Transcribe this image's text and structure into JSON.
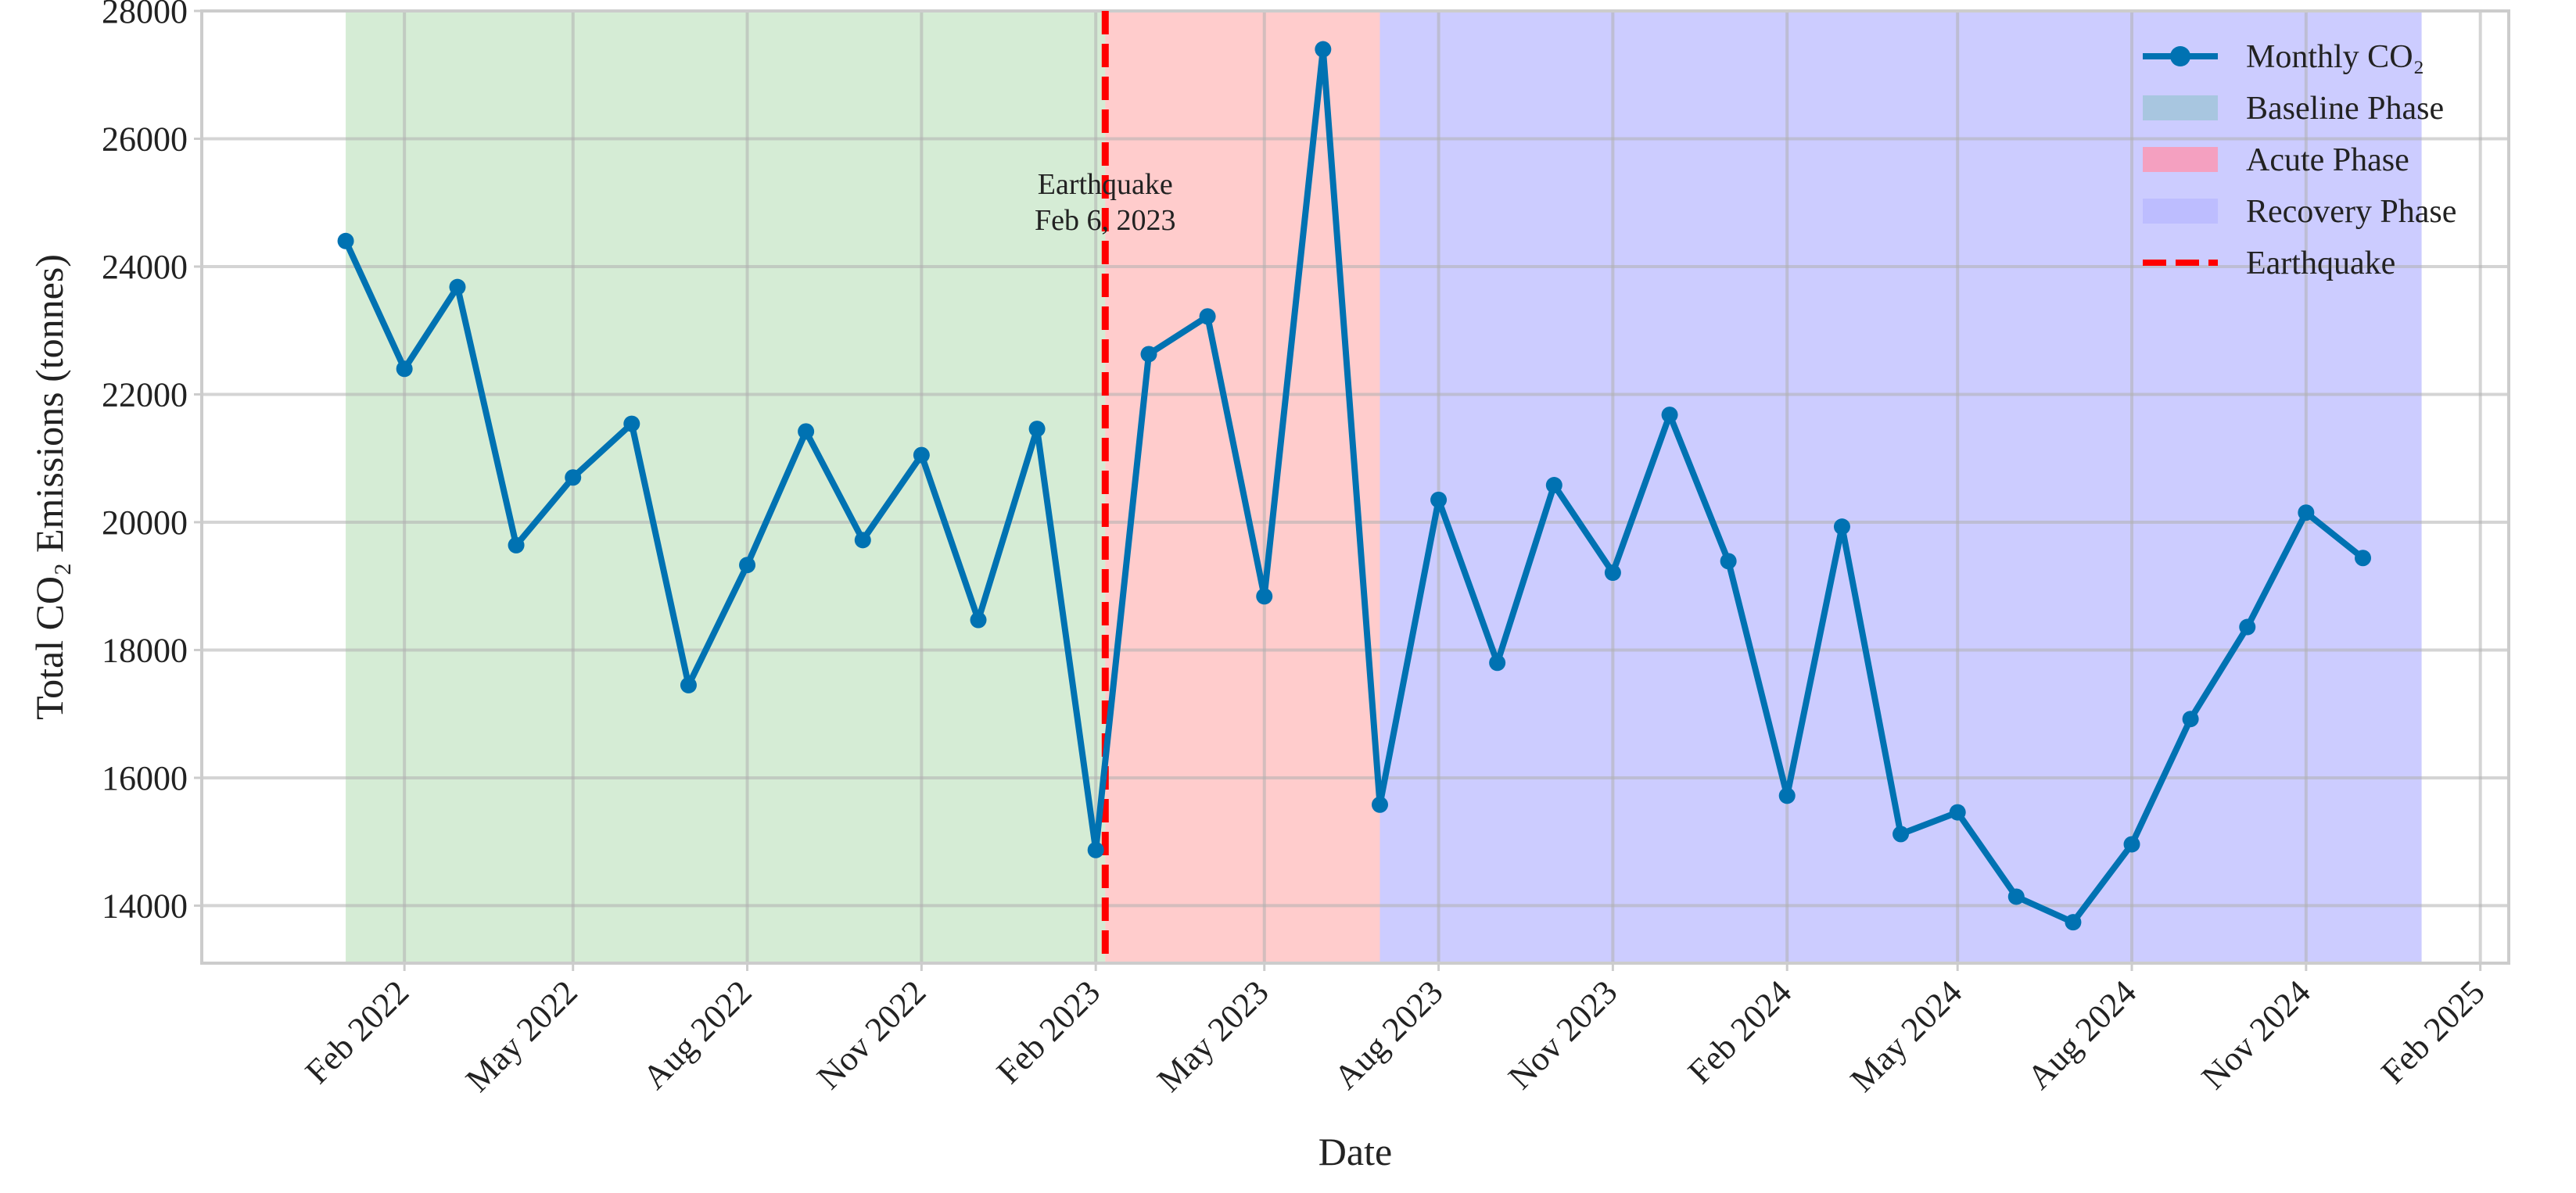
{
  "chart_data": {
    "type": "line",
    "xlabel": "Date",
    "ylabel": "Total CO₂ Emissions (tonnes)",
    "xlim": [
      "2021-10-17",
      "2025-02-16"
    ],
    "ylim": [
      13100,
      28000
    ],
    "grid": true,
    "legend_position": "top-right",
    "x_ticks": [
      {
        "date": "2022-02-01",
        "label": "Feb 2022"
      },
      {
        "date": "2022-05-01",
        "label": "May 2022"
      },
      {
        "date": "2022-08-01",
        "label": "Aug 2022"
      },
      {
        "date": "2022-11-01",
        "label": "Nov 2022"
      },
      {
        "date": "2023-02-01",
        "label": "Feb 2023"
      },
      {
        "date": "2023-05-01",
        "label": "May 2023"
      },
      {
        "date": "2023-08-01",
        "label": "Aug 2023"
      },
      {
        "date": "2023-11-01",
        "label": "Nov 2023"
      },
      {
        "date": "2024-02-01",
        "label": "Feb 2024"
      },
      {
        "date": "2024-05-01",
        "label": "May 2024"
      },
      {
        "date": "2024-08-01",
        "label": "Aug 2024"
      },
      {
        "date": "2024-11-01",
        "label": "Nov 2024"
      },
      {
        "date": "2025-02-01",
        "label": "Feb 2025"
      }
    ],
    "y_ticks": [
      14000,
      16000,
      18000,
      20000,
      22000,
      24000,
      26000,
      28000
    ],
    "series": [
      {
        "name": "Monthly CO₂",
        "color": "#0072B2",
        "x": [
          "2022-01-01",
          "2022-02-01",
          "2022-03-01",
          "2022-04-01",
          "2022-05-01",
          "2022-06-01",
          "2022-07-01",
          "2022-08-01",
          "2022-09-01",
          "2022-10-01",
          "2022-11-01",
          "2022-12-01",
          "2023-01-01",
          "2023-02-01",
          "2023-03-01",
          "2023-04-01",
          "2023-05-01",
          "2023-06-01",
          "2023-07-01",
          "2023-08-01",
          "2023-09-01",
          "2023-10-01",
          "2023-11-01",
          "2023-12-01",
          "2024-01-01",
          "2024-02-01",
          "2024-03-01",
          "2024-04-01",
          "2024-05-01",
          "2024-06-01",
          "2024-07-01",
          "2024-08-01",
          "2024-09-01",
          "2024-10-01",
          "2024-11-01",
          "2024-12-01"
        ],
        "values": [
          24400,
          22400,
          23680,
          19640,
          20700,
          21540,
          17450,
          19330,
          21420,
          19720,
          21050,
          18470,
          21460,
          14870,
          22630,
          23220,
          18840,
          27400,
          15580,
          20350,
          17800,
          20580,
          19210,
          21680,
          19390,
          15720,
          19930,
          15120,
          15460,
          14140,
          13740,
          14960,
          16920,
          18360,
          20150,
          19440
        ]
      }
    ],
    "phases": [
      {
        "name": "Baseline Phase",
        "start": "2022-01-01",
        "end": "2023-02-06",
        "color": "#2ca02c",
        "legend_color": "#a8c6e0"
      },
      {
        "name": "Acute Phase",
        "start": "2023-02-06",
        "end": "2023-07-01",
        "color": "#ff0000",
        "legend_color": "#f4a0c0"
      },
      {
        "name": "Recovery Phase",
        "start": "2023-07-01",
        "end": "2025-01-01",
        "color": "#0000ff",
        "legend_color": "#bdbdff"
      }
    ],
    "event": {
      "name": "Earthquake",
      "date": "2023-02-06",
      "color": "#ff0000",
      "annotation_lines": [
        "Earthquake",
        "Feb 6, 2023"
      ]
    }
  }
}
